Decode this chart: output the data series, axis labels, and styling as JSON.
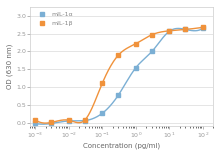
{
  "title": "",
  "xlabel": "Concentration (pg/ml)",
  "ylabel": "OD (630 nm)",
  "series": [
    {
      "name": "mIL-1α",
      "color": "#7bafd4",
      "marker": "s",
      "x": [
        0.001,
        0.003,
        0.01,
        0.03,
        0.1,
        0.3,
        1.0,
        3.0,
        10.0,
        30.0,
        100.0
      ],
      "y": [
        -0.02,
        -0.02,
        0.05,
        0.06,
        0.27,
        0.78,
        1.55,
        2.0,
        2.57,
        2.62,
        2.65
      ]
    },
    {
      "name": "mIL-1β",
      "color": "#f0923b",
      "marker": "s",
      "x": [
        0.001,
        0.003,
        0.01,
        0.03,
        0.1,
        0.3,
        1.0,
        3.0,
        10.0,
        30.0,
        100.0
      ],
      "y": [
        0.08,
        0.01,
        0.07,
        0.08,
        1.12,
        1.9,
        2.22,
        2.47,
        2.58,
        2.62,
        2.68
      ]
    }
  ],
  "xlim": [
    0.0007,
    200
  ],
  "ylim": [
    -0.1,
    3.25
  ],
  "yticks": [
    0.0,
    0.5,
    1.0,
    1.5,
    2.0,
    2.5,
    3.0
  ],
  "legend_loc": "upper left",
  "bg_color": "#ffffff",
  "grid_color": "#e0e0e0",
  "axis_bg": "#ffffff"
}
